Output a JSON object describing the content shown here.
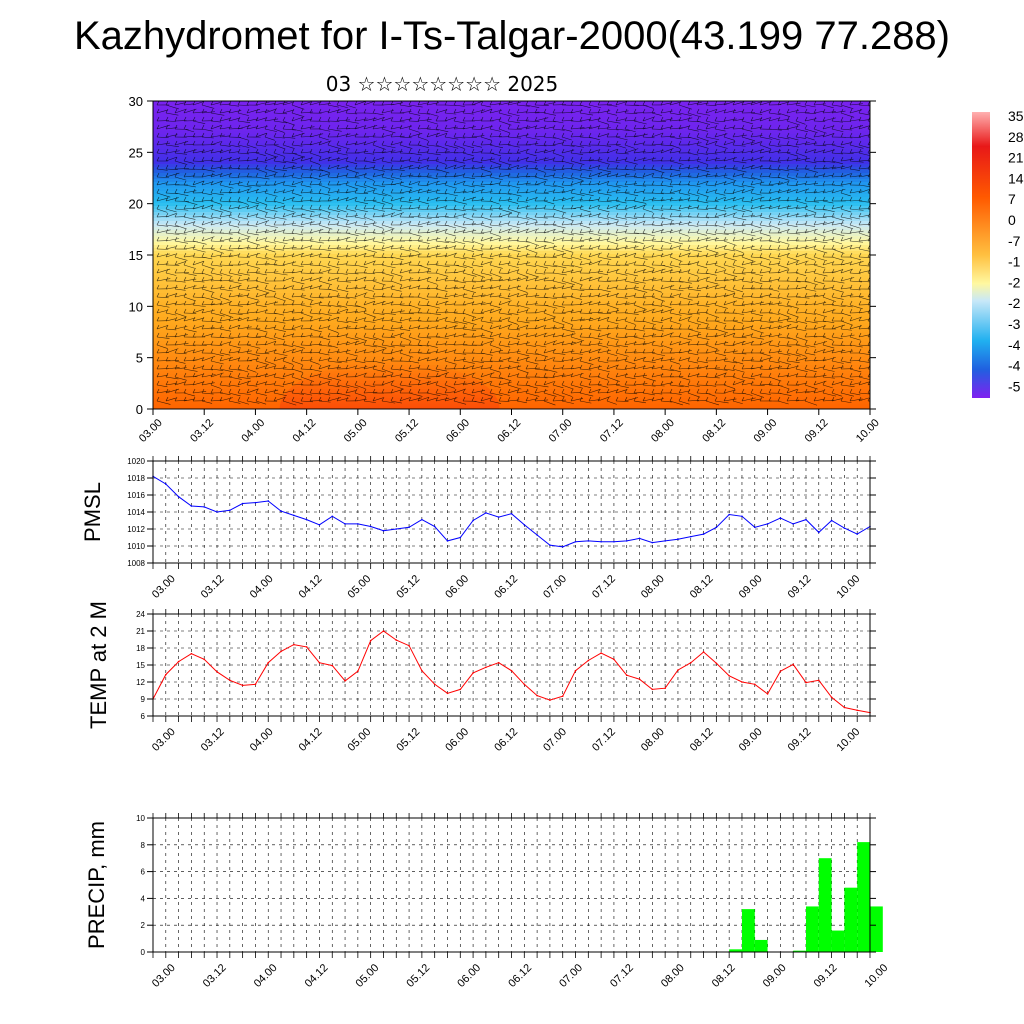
{
  "title": "Kazhydromet for I-Ts-Talgar-2000(43.199 77.288)",
  "subtitle": "03 ☆☆☆☆☆☆☆☆ 2025",
  "colors": {
    "pmsl_line": "#0000ff",
    "temp_line": "#ff0000",
    "precip_bar": "#00ff00",
    "grid": "#000000"
  },
  "time_tick_labels": [
    "03.00",
    "03.12",
    "04.00",
    "04.12",
    "05.00",
    "05.12",
    "06.00",
    "06.12",
    "07.00",
    "07.12",
    "08.00",
    "08.12",
    "09.00",
    "09.12",
    "10.00"
  ],
  "chart_data": [
    {
      "type": "heatmap",
      "name": "vertical cross-section",
      "xlim": [
        0,
        14
      ],
      "ylim": [
        0,
        30
      ],
      "y_ticks": [
        "0",
        "5",
        "10",
        "15",
        "20",
        "25",
        "30"
      ],
      "colorbar_labels": [
        "35",
        "28",
        "21",
        "14",
        "7",
        "0",
        "-7",
        "-1",
        "-2",
        "-2",
        "-3",
        "-4",
        "-4",
        "-5"
      ],
      "level_profile": [
        {
          "level": 0,
          "value": 14
        },
        {
          "level": 5,
          "value": 10
        },
        {
          "level": 10,
          "value": 6
        },
        {
          "level": 15,
          "value": 0
        },
        {
          "level": 18,
          "value": -10
        },
        {
          "level": 20,
          "value": -20
        },
        {
          "level": 22,
          "value": -30
        },
        {
          "level": 24,
          "value": -45
        },
        {
          "level": 27,
          "value": -52
        },
        {
          "level": 30,
          "value": -54
        }
      ],
      "overlay": "wind barbs"
    },
    {
      "type": "line",
      "ylabel": "PMSL",
      "ylim": [
        1008,
        1020
      ],
      "y_ticks": [
        "1008",
        "1010",
        "1012",
        "1014",
        "1016",
        "1018",
        "1020"
      ],
      "x_step_hours": 3,
      "values": [
        1018.2,
        1017.3,
        1015.8,
        1014.7,
        1014.6,
        1014.0,
        1014.2,
        1015.0,
        1015.1,
        1015.3,
        1014.1,
        1013.6,
        1013.1,
        1012.5,
        1013.5,
        1012.6,
        1012.6,
        1012.3,
        1011.8,
        1012.0,
        1012.2,
        1013.1,
        1012.3,
        1010.6,
        1011.0,
        1013.0,
        1013.9,
        1013.4,
        1013.8,
        1012.5,
        1011.3,
        1010.1,
        1009.9,
        1010.5,
        1010.6,
        1010.5,
        1010.5,
        1010.6,
        1010.9,
        1010.4,
        1010.6,
        1010.8,
        1011.1,
        1011.4,
        1012.2,
        1013.7,
        1013.5,
        1012.2,
        1012.6,
        1013.3,
        1012.6,
        1013.1,
        1011.6,
        1013.0,
        1012.1,
        1011.4,
        1012.3
      ],
      "grid": true
    },
    {
      "type": "line",
      "ylabel": "TEMP at 2 M",
      "ylim": [
        6,
        24
      ],
      "y_ticks": [
        "6",
        "9",
        "12",
        "15",
        "18",
        "21",
        "24"
      ],
      "x_step_hours": 3,
      "values": [
        9.0,
        13.3,
        15.6,
        17.0,
        16.0,
        13.8,
        12.3,
        11.4,
        11.6,
        15.4,
        17.4,
        18.6,
        18.2,
        15.4,
        14.9,
        12.2,
        13.9,
        19.3,
        21.0,
        19.4,
        18.4,
        14.0,
        11.6,
        10.0,
        10.7,
        13.6,
        14.6,
        15.4,
        14.0,
        11.6,
        9.6,
        8.8,
        9.5,
        14.0,
        15.8,
        17.1,
        16.0,
        13.2,
        12.5,
        10.7,
        10.9,
        14.1,
        15.4,
        17.3,
        15.3,
        13.1,
        12.0,
        11.6,
        9.9,
        13.9,
        15.1,
        11.9,
        12.3,
        9.3,
        7.5,
        7.0,
        6.6
      ],
      "grid": true
    },
    {
      "type": "bar",
      "ylabel": "PRECIP, mm",
      "ylim": [
        0,
        10
      ],
      "y_ticks": [
        "0",
        "2",
        "4",
        "6",
        "8",
        "10"
      ],
      "x_step_hours": 3,
      "values": [
        0,
        0,
        0,
        0,
        0,
        0,
        0,
        0,
        0,
        0,
        0,
        0,
        0,
        0,
        0,
        0,
        0,
        0,
        0,
        0,
        0,
        0,
        0,
        0,
        0,
        0,
        0,
        0,
        0,
        0,
        0,
        0,
        0,
        0,
        0,
        0,
        0,
        0,
        0,
        0,
        0,
        0,
        0,
        0,
        0,
        0.2,
        3.2,
        0.9,
        0,
        0,
        0.1,
        3.4,
        7.0,
        1.6,
        4.8,
        8.2,
        3.4
      ],
      "grid": true
    }
  ]
}
